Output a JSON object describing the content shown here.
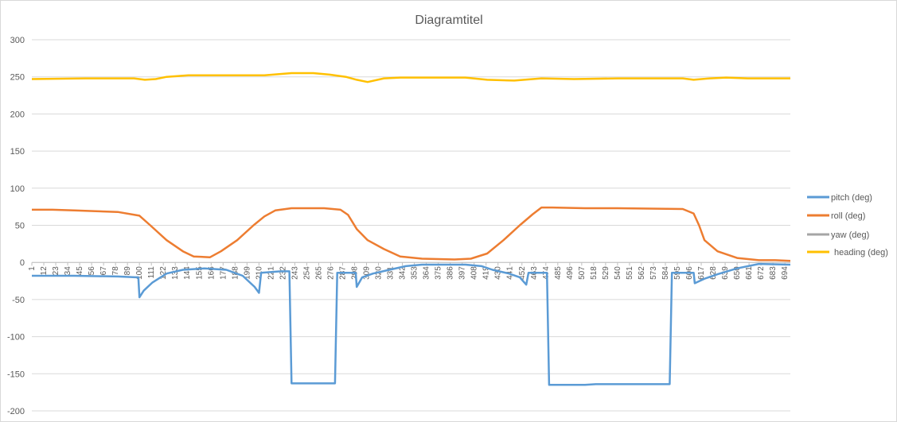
{
  "chart_data": {
    "type": "line",
    "title": "Diagramtitel",
    "xlabel": "",
    "ylabel": "",
    "ylim": [
      -200,
      300
    ],
    "ytick_step": 50,
    "grid": true,
    "legend_position": "right",
    "x_tick_labels": [
      "1",
      "12",
      "23",
      "34",
      "45",
      "56",
      "67",
      "78",
      "89",
      "100",
      "111",
      "122",
      "133",
      "144",
      "155",
      "166",
      "177",
      "188",
      "199",
      "210",
      "221",
      "232",
      "243",
      "254",
      "265",
      "276",
      "287",
      "298",
      "309",
      "320",
      "331",
      "342",
      "353",
      "364",
      "375",
      "386",
      "397",
      "408",
      "419",
      "430",
      "441",
      "452",
      "463",
      "474",
      "485",
      "496",
      "507",
      "518",
      "529",
      "540",
      "551",
      "562",
      "573",
      "584",
      "595",
      "606",
      "617",
      "628",
      "639",
      "650",
      "661",
      "672",
      "683",
      "694"
    ],
    "x_range": [
      1,
      699
    ],
    "series": [
      {
        "name": "pitch (deg)",
        "color": "#5b9bd5",
        "points": [
          [
            1,
            -18
          ],
          [
            40,
            -18
          ],
          [
            80,
            -19
          ],
          [
            96,
            -20
          ],
          [
            99,
            -20
          ],
          [
            100,
            -47
          ],
          [
            104,
            -38
          ],
          [
            112,
            -27
          ],
          [
            125,
            -15
          ],
          [
            140,
            -10
          ],
          [
            160,
            -8
          ],
          [
            180,
            -10
          ],
          [
            195,
            -18
          ],
          [
            206,
            -33
          ],
          [
            210,
            -41
          ],
          [
            212,
            -14
          ],
          [
            230,
            -12
          ],
          [
            238,
            -12
          ],
          [
            240,
            -163
          ],
          [
            280,
            -163
          ],
          [
            282,
            -14
          ],
          [
            299,
            -14
          ],
          [
            300,
            -33
          ],
          [
            305,
            -20
          ],
          [
            315,
            -15
          ],
          [
            330,
            -10
          ],
          [
            345,
            -5
          ],
          [
            360,
            -3
          ],
          [
            400,
            -3
          ],
          [
            415,
            -5
          ],
          [
            425,
            -10
          ],
          [
            440,
            -15
          ],
          [
            450,
            -20
          ],
          [
            456,
            -30
          ],
          [
            458,
            -14
          ],
          [
            475,
            -14
          ],
          [
            477,
            -165
          ],
          [
            510,
            -165
          ],
          [
            520,
            -164
          ],
          [
            588,
            -164
          ],
          [
            590,
            -14
          ],
          [
            610,
            -14
          ],
          [
            611,
            -28
          ],
          [
            620,
            -22
          ],
          [
            632,
            -16
          ],
          [
            650,
            -8
          ],
          [
            670,
            -2
          ],
          [
            699,
            -3
          ]
        ]
      },
      {
        "name": "roll (deg)",
        "color": "#ed7d31",
        "points": [
          [
            1,
            71
          ],
          [
            20,
            71
          ],
          [
            40,
            70
          ],
          [
            60,
            69
          ],
          [
            80,
            68
          ],
          [
            100,
            63
          ],
          [
            110,
            50
          ],
          [
            125,
            30
          ],
          [
            140,
            15
          ],
          [
            150,
            8
          ],
          [
            165,
            7
          ],
          [
            175,
            15
          ],
          [
            190,
            30
          ],
          [
            205,
            50
          ],
          [
            215,
            62
          ],
          [
            225,
            70
          ],
          [
            240,
            73
          ],
          [
            270,
            73
          ],
          [
            285,
            71
          ],
          [
            292,
            64
          ],
          [
            300,
            45
          ],
          [
            310,
            30
          ],
          [
            325,
            18
          ],
          [
            340,
            8
          ],
          [
            360,
            5
          ],
          [
            390,
            4
          ],
          [
            405,
            5
          ],
          [
            420,
            12
          ],
          [
            435,
            30
          ],
          [
            450,
            50
          ],
          [
            462,
            65
          ],
          [
            470,
            74
          ],
          [
            480,
            74
          ],
          [
            510,
            73
          ],
          [
            540,
            73
          ],
          [
            600,
            72
          ],
          [
            610,
            66
          ],
          [
            615,
            50
          ],
          [
            620,
            30
          ],
          [
            632,
            15
          ],
          [
            650,
            6
          ],
          [
            670,
            3
          ],
          [
            685,
            3
          ],
          [
            699,
            2
          ]
        ]
      },
      {
        "name": "yaw (deg)",
        "color": "#a5a5a5",
        "points": []
      },
      {
        "name": "heading (deg)",
        "color": "#ffc000",
        "points": [
          [
            1,
            247
          ],
          [
            50,
            248
          ],
          [
            95,
            248
          ],
          [
            105,
            246
          ],
          [
            115,
            247
          ],
          [
            125,
            250
          ],
          [
            145,
            252
          ],
          [
            175,
            252
          ],
          [
            215,
            252
          ],
          [
            240,
            255
          ],
          [
            260,
            255
          ],
          [
            275,
            253
          ],
          [
            290,
            250
          ],
          [
            300,
            246
          ],
          [
            310,
            243
          ],
          [
            325,
            248
          ],
          [
            340,
            249
          ],
          [
            400,
            249
          ],
          [
            420,
            246
          ],
          [
            445,
            245
          ],
          [
            470,
            248
          ],
          [
            500,
            247
          ],
          [
            540,
            248
          ],
          [
            600,
            248
          ],
          [
            610,
            246
          ],
          [
            625,
            248
          ],
          [
            640,
            249
          ],
          [
            660,
            248
          ],
          [
            699,
            248
          ]
        ]
      }
    ]
  }
}
